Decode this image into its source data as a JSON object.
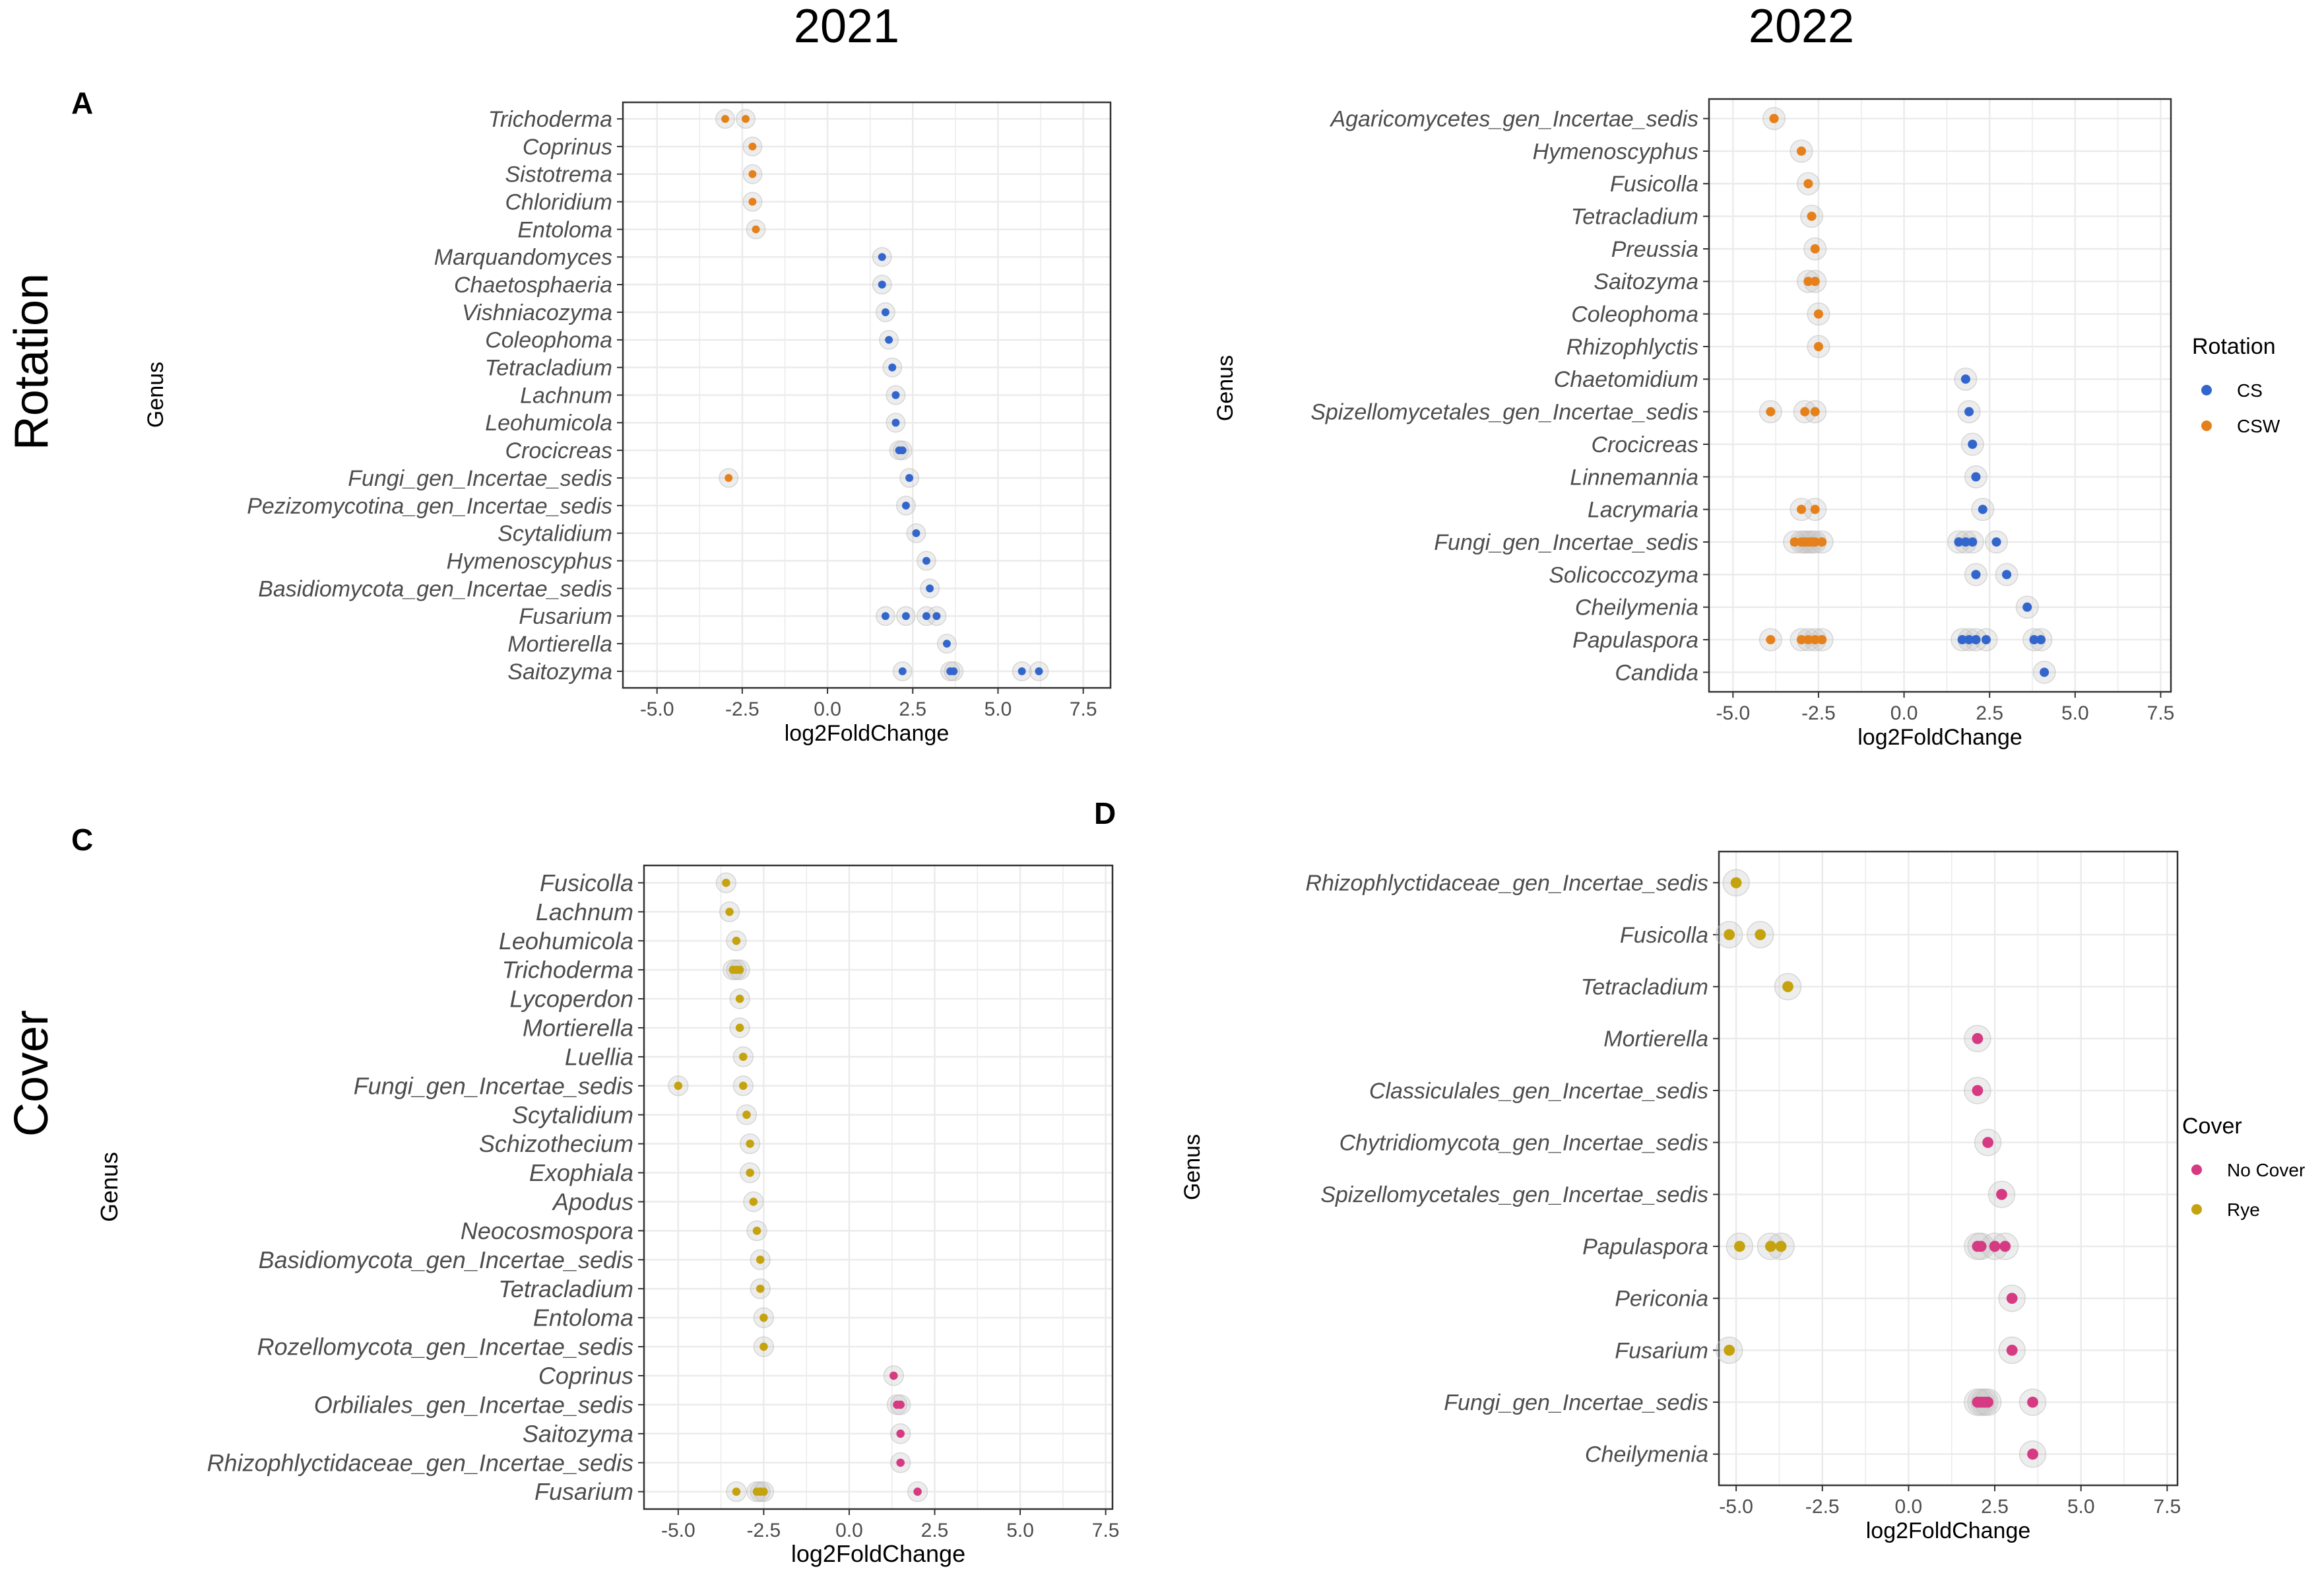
{
  "figure": {
    "col_titles": [
      "2021",
      "2022"
    ],
    "row_titles": [
      "Rotation",
      "Cover"
    ],
    "colors": {
      "CS": "#3366cc",
      "CSW": "#e6801a",
      "No Cover": "#d63a82",
      "Rye": "#c4a30e",
      "halo": "#bdbdbd",
      "grid": "#ebebeb",
      "text": "#4d4d4d"
    }
  },
  "chart_data": [
    {
      "id": "A",
      "type": "scatter",
      "panel_label": "A",
      "xlabel": "log2FoldChange",
      "ylabel": "Genus",
      "xlim": [
        -6,
        8.3
      ],
      "xticks": [
        "-5.0",
        "-2.5",
        "0.0",
        "2.5",
        "5.0",
        "7.5"
      ],
      "legend": null,
      "categories": [
        "Trichoderma",
        "Coprinus",
        "Sistotrema",
        "Chloridium",
        "Entoloma",
        "Marquandomyces",
        "Chaetosphaeria",
        "Vishniacozyma",
        "Coleophoma",
        "Tetracladium",
        "Lachnum",
        "Leohumicola",
        "Crocicreas",
        "Fungi_gen_Incertae_sedis",
        "Pezizomycotina_gen_Incertae_sedis",
        "Scytalidium",
        "Hymenoscyphus",
        "Basidiomycota_gen_Incertae_sedis",
        "Fusarium",
        "Mortierella",
        "Saitozyma"
      ],
      "series": [
        {
          "name": "CS",
          "points": [
            [
              "Marquandomyces",
              1.6
            ],
            [
              "Chaetosphaeria",
              1.6
            ],
            [
              "Vishniacozyma",
              1.7
            ],
            [
              "Coleophoma",
              1.8
            ],
            [
              "Tetracladium",
              1.9
            ],
            [
              "Lachnum",
              2.0
            ],
            [
              "Leohumicola",
              2.0
            ],
            [
              "Crocicreas",
              2.1
            ],
            [
              "Crocicreas",
              2.2
            ],
            [
              "Pezizomycotina_gen_Incertae_sedis",
              2.3
            ],
            [
              "Fungi_gen_Incertae_sedis",
              2.4
            ],
            [
              "Scytalidium",
              2.6
            ],
            [
              "Hymenoscyphus",
              2.9
            ],
            [
              "Basidiomycota_gen_Incertae_sedis",
              3.0
            ],
            [
              "Fusarium",
              1.7
            ],
            [
              "Fusarium",
              2.3
            ],
            [
              "Fusarium",
              2.9
            ],
            [
              "Fusarium",
              3.2
            ],
            [
              "Mortierella",
              3.5
            ],
            [
              "Saitozyma",
              2.2
            ],
            [
              "Saitozyma",
              3.6
            ],
            [
              "Saitozyma",
              3.7
            ],
            [
              "Saitozyma",
              5.7
            ],
            [
              "Saitozyma",
              6.2
            ]
          ]
        },
        {
          "name": "CSW",
          "points": [
            [
              "Trichoderma",
              -3.0
            ],
            [
              "Trichoderma",
              -2.4
            ],
            [
              "Coprinus",
              -2.2
            ],
            [
              "Sistotrema",
              -2.2
            ],
            [
              "Chloridium",
              -2.2
            ],
            [
              "Entoloma",
              -2.1
            ],
            [
              "Fungi_gen_Incertae_sedis",
              -2.9
            ]
          ]
        }
      ]
    },
    {
      "id": "B",
      "type": "scatter",
      "panel_label": "",
      "xlabel": "log2FoldChange",
      "ylabel": "Genus",
      "xlim": [
        -5.7,
        7.8
      ],
      "xticks": [
        "-5.0",
        "-2.5",
        "0.0",
        "2.5",
        "5.0",
        "7.5"
      ],
      "legend": {
        "title": "Rotation",
        "entries": [
          "CS",
          "CSW"
        ],
        "position": "right"
      },
      "categories": [
        "Agaricomycetes_gen_Incertae_sedis",
        "Hymenoscyphus",
        "Fusicolla",
        "Tetracladium",
        "Preussia",
        "Saitozyma",
        "Coleophoma",
        "Rhizophlyctis",
        "Chaetomidium",
        "Spizellomycetales_gen_Incertae_sedis",
        "Crocicreas",
        "Linnemannia",
        "Lacrymaria",
        "Fungi_gen_Incertae_sedis",
        "Solicoccozyma",
        "Cheilymenia",
        "Papulaspora",
        "Candida"
      ],
      "series": [
        {
          "name": "CS",
          "points": [
            [
              "Chaetomidium",
              1.8
            ],
            [
              "Spizellomycetales_gen_Incertae_sedis",
              1.9
            ],
            [
              "Crocicreas",
              2.0
            ],
            [
              "Linnemannia",
              2.1
            ],
            [
              "Lacrymaria",
              2.3
            ],
            [
              "Fungi_gen_Incertae_sedis",
              1.6
            ],
            [
              "Fungi_gen_Incertae_sedis",
              1.8
            ],
            [
              "Fungi_gen_Incertae_sedis",
              2.0
            ],
            [
              "Fungi_gen_Incertae_sedis",
              2.7
            ],
            [
              "Solicoccozyma",
              2.1
            ],
            [
              "Solicoccozyma",
              3.0
            ],
            [
              "Cheilymenia",
              3.6
            ],
            [
              "Papulaspora",
              1.7
            ],
            [
              "Papulaspora",
              1.9
            ],
            [
              "Papulaspora",
              2.1
            ],
            [
              "Papulaspora",
              2.4
            ],
            [
              "Papulaspora",
              3.8
            ],
            [
              "Papulaspora",
              4.0
            ],
            [
              "Candida",
              4.1
            ]
          ]
        },
        {
          "name": "CSW",
          "points": [
            [
              "Agaricomycetes_gen_Incertae_sedis",
              -3.8
            ],
            [
              "Hymenoscyphus",
              -3.0
            ],
            [
              "Fusicolla",
              -2.8
            ],
            [
              "Tetracladium",
              -2.7
            ],
            [
              "Preussia",
              -2.6
            ],
            [
              "Saitozyma",
              -2.8
            ],
            [
              "Saitozyma",
              -2.6
            ],
            [
              "Coleophoma",
              -2.5
            ],
            [
              "Rhizophlyctis",
              -2.5
            ],
            [
              "Spizellomycetales_gen_Incertae_sedis",
              -3.9
            ],
            [
              "Spizellomycetales_gen_Incertae_sedis",
              -2.9
            ],
            [
              "Spizellomycetales_gen_Incertae_sedis",
              -2.6
            ],
            [
              "Lacrymaria",
              -3.0
            ],
            [
              "Lacrymaria",
              -2.6
            ],
            [
              "Fungi_gen_Incertae_sedis",
              -3.2
            ],
            [
              "Fungi_gen_Incertae_sedis",
              -3.0
            ],
            [
              "Fungi_gen_Incertae_sedis",
              -2.9
            ],
            [
              "Fungi_gen_Incertae_sedis",
              -2.8
            ],
            [
              "Fungi_gen_Incertae_sedis",
              -2.7
            ],
            [
              "Fungi_gen_Incertae_sedis",
              -2.6
            ],
            [
              "Fungi_gen_Incertae_sedis",
              -2.4
            ],
            [
              "Papulaspora",
              -3.9
            ],
            [
              "Papulaspora",
              -3.0
            ],
            [
              "Papulaspora",
              -2.8
            ],
            [
              "Papulaspora",
              -2.6
            ],
            [
              "Papulaspora",
              -2.4
            ]
          ]
        }
      ]
    },
    {
      "id": "C",
      "type": "scatter",
      "panel_label": "C",
      "xlabel": "log2FoldChange",
      "ylabel": "Genus",
      "xlim": [
        -6.0,
        7.7
      ],
      "xticks": [
        "-5.0",
        "-2.5",
        "0.0",
        "2.5",
        "5.0",
        "7.5"
      ],
      "legend": null,
      "categories": [
        "Fusicolla",
        "Lachnum",
        "Leohumicola",
        "Trichoderma",
        "Lycoperdon",
        "Mortierella",
        "Luellia",
        "Fungi_gen_Incertae_sedis",
        "Scytalidium",
        "Schizothecium",
        "Exophiala",
        "Apodus",
        "Neocosmospora",
        "Basidiomycota_gen_Incertae_sedis",
        "Tetracladium",
        "Entoloma",
        "Rozellomycota_gen_Incertae_sedis",
        "Coprinus",
        "Orbiliales_gen_Incertae_sedis",
        "Saitozyma",
        "Rhizophlyctidaceae_gen_Incertae_sedis",
        "Fusarium"
      ],
      "series": [
        {
          "name": "No Cover",
          "points": [
            [
              "Coprinus",
              1.3
            ],
            [
              "Orbiliales_gen_Incertae_sedis",
              1.4
            ],
            [
              "Orbiliales_gen_Incertae_sedis",
              1.5
            ],
            [
              "Saitozyma",
              1.5
            ],
            [
              "Rhizophlyctidaceae_gen_Incertae_sedis",
              1.5
            ],
            [
              "Fusarium",
              2.0
            ]
          ]
        },
        {
          "name": "Rye",
          "points": [
            [
              "Fusicolla",
              -3.6
            ],
            [
              "Lachnum",
              -3.5
            ],
            [
              "Leohumicola",
              -3.3
            ],
            [
              "Trichoderma",
              -3.4
            ],
            [
              "Trichoderma",
              -3.3
            ],
            [
              "Trichoderma",
              -3.2
            ],
            [
              "Lycoperdon",
              -3.2
            ],
            [
              "Mortierella",
              -3.2
            ],
            [
              "Luellia",
              -3.1
            ],
            [
              "Fungi_gen_Incertae_sedis",
              -5.0
            ],
            [
              "Fungi_gen_Incertae_sedis",
              -3.1
            ],
            [
              "Scytalidium",
              -3.0
            ],
            [
              "Schizothecium",
              -2.9
            ],
            [
              "Exophiala",
              -2.9
            ],
            [
              "Apodus",
              -2.8
            ],
            [
              "Neocosmospora",
              -2.7
            ],
            [
              "Basidiomycota_gen_Incertae_sedis",
              -2.6
            ],
            [
              "Tetracladium",
              -2.6
            ],
            [
              "Entoloma",
              -2.5
            ],
            [
              "Rozellomycota_gen_Incertae_sedis",
              -2.5
            ],
            [
              "Fusarium",
              -3.3
            ],
            [
              "Fusarium",
              -2.7
            ],
            [
              "Fusarium",
              -2.6
            ],
            [
              "Fusarium",
              -2.5
            ]
          ]
        }
      ]
    },
    {
      "id": "D",
      "type": "scatter",
      "panel_label": "D",
      "xlabel": "log2FoldChange",
      "ylabel": "Genus",
      "xlim": [
        -5.5,
        7.8
      ],
      "xticks": [
        "-5.0",
        "-2.5",
        "0.0",
        "2.5",
        "5.0",
        "7.5"
      ],
      "legend": {
        "title": "Cover",
        "entries": [
          "No Cover",
          "Rye"
        ],
        "position": "right"
      },
      "categories": [
        "Rhizophlyctidaceae_gen_Incertae_sedis",
        "Fusicolla",
        "Tetracladium",
        "Mortierella",
        "Classiculales_gen_Incertae_sedis",
        "Chytridiomycota_gen_Incertae_sedis",
        "Spizellomycetales_gen_Incertae_sedis",
        "Papulaspora",
        "Periconia",
        "Fusarium",
        "Fungi_gen_Incertae_sedis",
        "Cheilymenia"
      ],
      "series": [
        {
          "name": "No Cover",
          "points": [
            [
              "Mortierella",
              2.0
            ],
            [
              "Classiculales_gen_Incertae_sedis",
              2.0
            ],
            [
              "Chytridiomycota_gen_Incertae_sedis",
              2.3
            ],
            [
              "Spizellomycetales_gen_Incertae_sedis",
              2.7
            ],
            [
              "Papulaspora",
              2.0
            ],
            [
              "Papulaspora",
              2.1
            ],
            [
              "Papulaspora",
              2.5
            ],
            [
              "Papulaspora",
              2.8
            ],
            [
              "Periconia",
              3.0
            ],
            [
              "Fusarium",
              3.0
            ],
            [
              "Fungi_gen_Incertae_sedis",
              2.0
            ],
            [
              "Fungi_gen_Incertae_sedis",
              2.1
            ],
            [
              "Fungi_gen_Incertae_sedis",
              2.2
            ],
            [
              "Fungi_gen_Incertae_sedis",
              2.3
            ],
            [
              "Fungi_gen_Incertae_sedis",
              3.6
            ],
            [
              "Cheilymenia",
              3.6
            ]
          ]
        },
        {
          "name": "Rye",
          "points": [
            [
              "Rhizophlyctidaceae_gen_Incertae_sedis",
              -5.0
            ],
            [
              "Fusicolla",
              -5.2
            ],
            [
              "Fusicolla",
              -4.3
            ],
            [
              "Tetracladium",
              -3.5
            ],
            [
              "Papulaspora",
              -4.9
            ],
            [
              "Papulaspora",
              -4.0
            ],
            [
              "Papulaspora",
              -3.7
            ],
            [
              "Fusarium",
              -5.2
            ]
          ]
        }
      ]
    }
  ]
}
